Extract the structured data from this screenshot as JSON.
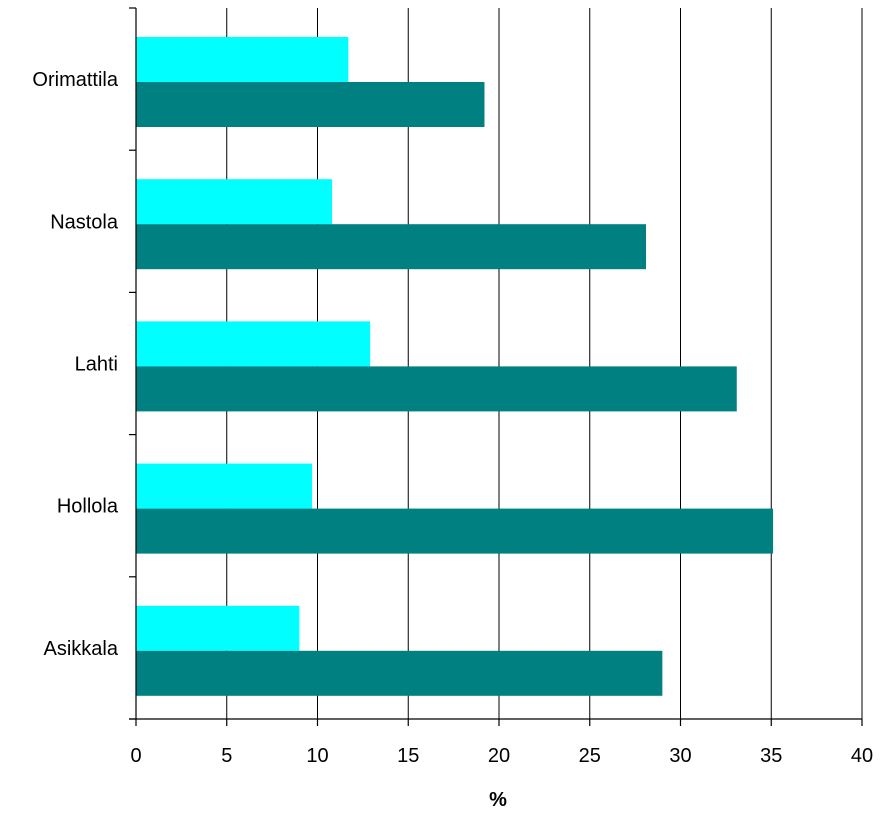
{
  "chart_data": {
    "type": "bar",
    "orientation": "horizontal",
    "categories": [
      "Orimattila",
      "Nastola",
      "Lahti",
      "Hollola",
      "Asikkala"
    ],
    "series": [
      {
        "color": "#00FFFF",
        "values": [
          11.7,
          10.8,
          12.9,
          9.7,
          9.0
        ]
      },
      {
        "color": "#008080",
        "values": [
          19.2,
          28.1,
          33.1,
          35.1,
          29.0
        ]
      }
    ],
    "xlim": [
      0,
      40
    ],
    "xticks": [
      0,
      5,
      10,
      15,
      20,
      25,
      30,
      35,
      40
    ],
    "xlabel": "%",
    "ylabel": "",
    "title": "",
    "grid": "vertical",
    "legend": false
  }
}
